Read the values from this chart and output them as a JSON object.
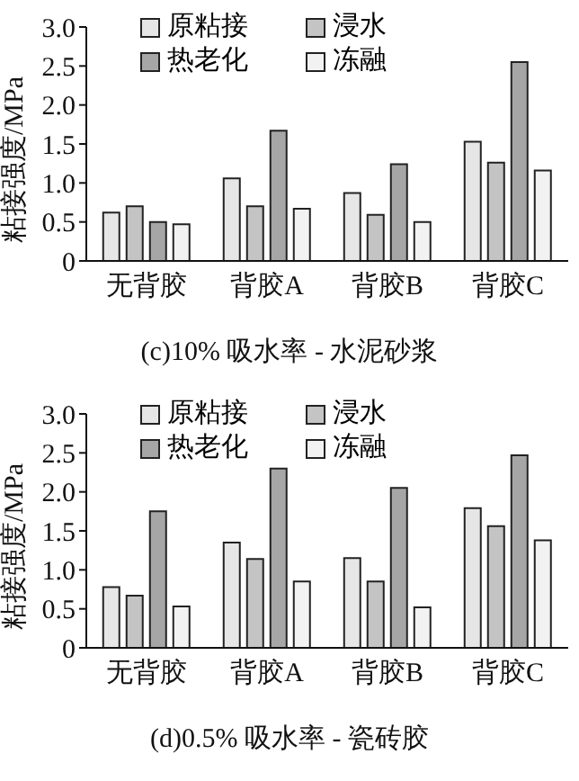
{
  "chart_data": [
    {
      "type": "bar",
      "title": "(c)10% 吸水率 - 水泥砂浆",
      "ylabel": "粘接强度/MPa",
      "categories": [
        "无背胶",
        "背胶A",
        "背胶B",
        "背胶C"
      ],
      "series": [
        {
          "name": "原粘接",
          "color": "#e6e6e6",
          "values": [
            0.62,
            1.06,
            0.87,
            1.53
          ]
        },
        {
          "name": "浸水",
          "color": "#c4c4c4",
          "values": [
            0.7,
            0.7,
            0.59,
            1.26
          ]
        },
        {
          "name": "热老化",
          "color": "#a6a6a6",
          "values": [
            0.5,
            1.67,
            1.24,
            2.55
          ]
        },
        {
          "name": "冻融",
          "color": "#f2f2f2",
          "values": [
            0.47,
            0.67,
            0.5,
            1.16
          ]
        }
      ],
      "ylim": [
        0,
        3
      ],
      "yticks": [
        {
          "value": 0,
          "label": "0"
        },
        0.5,
        {
          "value": 1,
          "label": "1.0"
        },
        1.5,
        {
          "value": 2,
          "label": "2.0"
        },
        2.5,
        {
          "value": 3,
          "label": "3.0"
        }
      ],
      "legend": "top",
      "grid": false
    },
    {
      "type": "bar",
      "title": "(d)0.5% 吸水率 - 瓷砖胶",
      "ylabel": "粘接强度/MPa",
      "categories": [
        "无背胶",
        "背胶A",
        "背胶B",
        "背胶C"
      ],
      "series": [
        {
          "name": "原粘接",
          "color": "#e6e6e6",
          "values": [
            0.78,
            1.35,
            1.15,
            1.79
          ]
        },
        {
          "name": "浸水",
          "color": "#c4c4c4",
          "values": [
            0.67,
            1.14,
            0.85,
            1.56
          ]
        },
        {
          "name": "热老化",
          "color": "#a6a6a6",
          "values": [
            1.75,
            2.3,
            2.05,
            2.47
          ]
        },
        {
          "name": "冻融",
          "color": "#f2f2f2",
          "values": [
            0.53,
            0.85,
            0.52,
            1.38
          ]
        }
      ],
      "ylim": [
        0,
        3
      ],
      "yticks": [
        {
          "value": 0,
          "label": "0"
        },
        0.5,
        {
          "value": 1,
          "label": "1.0"
        },
        1.5,
        {
          "value": 2,
          "label": "2.0"
        },
        2.5,
        {
          "value": 3,
          "label": "3.0"
        }
      ],
      "legend": "top",
      "grid": false
    }
  ]
}
